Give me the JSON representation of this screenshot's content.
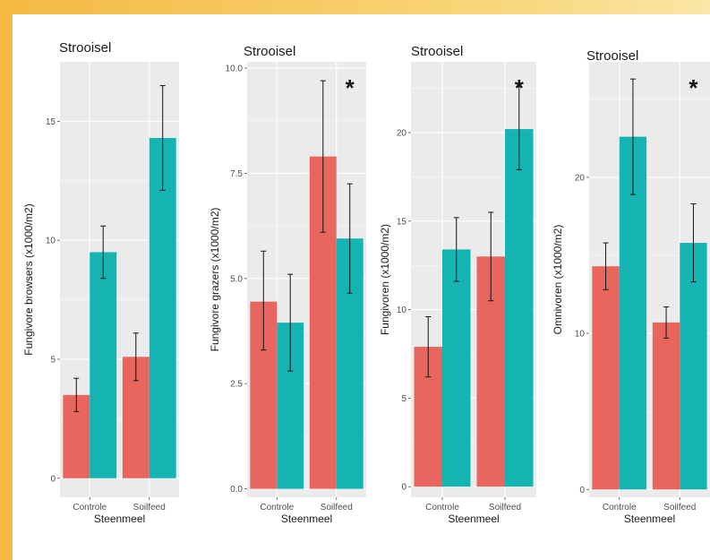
{
  "colors": {
    "controle": "#e8665e",
    "soilfeed": "#16b3b3",
    "panel": "#ebebeb",
    "grid": "#ffffff",
    "error": "#111111"
  },
  "chart_data": [
    {
      "type": "bar",
      "title": "Strooisel",
      "xlabel": "Steenmeel",
      "ylabel": "Fungivore browsers (x1000/m2)",
      "categories": [
        "Controle",
        "Soilfeed"
      ],
      "series": [
        {
          "values": [
            3.5,
            5.1
          ],
          "err_low": [
            2.8,
            4.1
          ],
          "err_high": [
            4.2,
            6.1
          ]
        },
        {
          "values": [
            9.5,
            14.3
          ],
          "err_low": [
            8.4,
            12.1
          ],
          "err_high": [
            10.6,
            16.5
          ]
        }
      ],
      "ylim": [
        -0.8,
        17.5
      ],
      "yticks": [
        0,
        5,
        10,
        15
      ],
      "ytick_labels": [
        "0",
        "5",
        "10",
        "15"
      ],
      "annotations": []
    },
    {
      "type": "bar",
      "title": "Strooisel",
      "xlabel": "Steenmeel",
      "ylabel": "Fungivore grazers (x1000/m2)",
      "categories": [
        "Controle",
        "Soilfeed"
      ],
      "series": [
        {
          "values": [
            4.45,
            7.9
          ],
          "err_low": [
            3.3,
            6.1
          ],
          "err_high": [
            5.65,
            9.7
          ]
        },
        {
          "values": [
            3.95,
            5.95
          ],
          "err_low": [
            2.8,
            4.65
          ],
          "err_high": [
            5.1,
            7.25
          ]
        }
      ],
      "ylim": [
        -0.2,
        10.15
      ],
      "yticks": [
        0,
        2.5,
        5,
        7.5,
        10
      ],
      "ytick_labels": [
        "0.0",
        "2.5",
        "5.0",
        "7.5",
        "10.0"
      ],
      "annotations": [
        {
          "text": "*",
          "category": "Soilfeed"
        }
      ]
    },
    {
      "type": "bar",
      "title": "Strooisel",
      "xlabel": "Steenmeel",
      "ylabel": "Fungivoren (x1000/m2)",
      "categories": [
        "Controle",
        "Soilfeed"
      ],
      "series": [
        {
          "values": [
            7.9,
            13.0
          ],
          "err_low": [
            6.2,
            10.5
          ],
          "err_high": [
            9.6,
            15.5
          ]
        },
        {
          "values": [
            13.4,
            20.2
          ],
          "err_low": [
            11.6,
            17.9
          ],
          "err_high": [
            15.2,
            22.6
          ]
        }
      ],
      "ylim": [
        -0.6,
        24.0
      ],
      "yticks": [
        0,
        5,
        10,
        15,
        20
      ],
      "ytick_labels": [
        "0",
        "5",
        "10",
        "15",
        "20"
      ],
      "annotations": [
        {
          "text": "*",
          "category": "Soilfeed"
        }
      ]
    },
    {
      "type": "bar",
      "title": "Strooisel",
      "xlabel": "Steenmeel",
      "ylabel": "Omnivoren (x1000/m2)",
      "categories": [
        "Controle",
        "Soilfeed"
      ],
      "series": [
        {
          "values": [
            14.3,
            10.7
          ],
          "err_low": [
            12.8,
            9.7
          ],
          "err_high": [
            15.8,
            11.7
          ]
        },
        {
          "values": [
            22.6,
            15.8
          ],
          "err_low": [
            18.9,
            13.3
          ],
          "err_high": [
            26.3,
            18.3
          ]
        }
      ],
      "ylim": [
        -0.5,
        27.4
      ],
      "yticks": [
        0,
        10,
        20
      ],
      "ytick_labels": [
        "0",
        "10",
        "20"
      ],
      "annotations": [
        {
          "text": "*",
          "category": "Soilfeed"
        }
      ]
    }
  ]
}
